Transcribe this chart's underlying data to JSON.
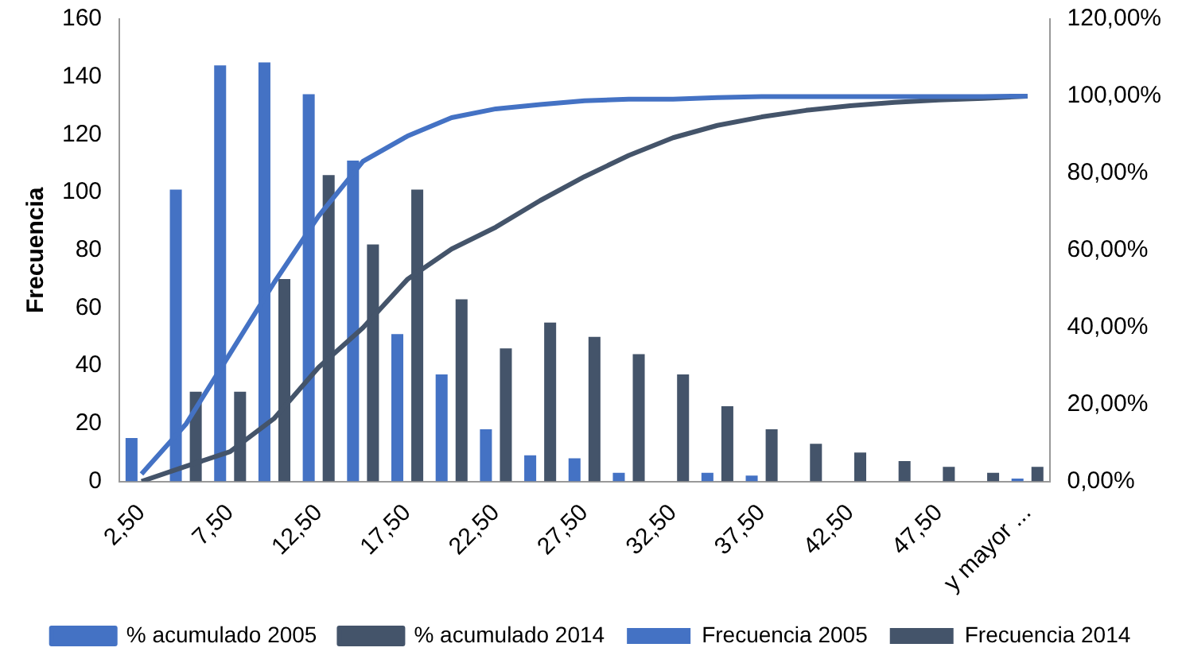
{
  "chart_data": {
    "type": "bar",
    "ylabel": "Frecuencia",
    "categories": [
      "2,50",
      null,
      "7,50",
      null,
      "12,50",
      null,
      "17,50",
      null,
      "22,50",
      null,
      "27,50",
      null,
      "32,50",
      null,
      "37,50",
      null,
      "42,50",
      null,
      "47,50",
      null,
      "y mayor ..."
    ],
    "series": [
      {
        "name": "Frecuencia 2005",
        "color": "#4472c4",
        "values": [
          15,
          101,
          144,
          145,
          134,
          111,
          51,
          37,
          18,
          9,
          8,
          3,
          0,
          3,
          2,
          0,
          0,
          0,
          0,
          0,
          1
        ]
      },
      {
        "name": "Frecuencia 2014",
        "color": "#44546a",
        "values": [
          0,
          31,
          31,
          70,
          106,
          82,
          101,
          63,
          46,
          55,
          50,
          44,
          37,
          26,
          18,
          13,
          10,
          7,
          5,
          3,
          5
        ]
      },
      {
        "name": "% acumulado 2005",
        "type": "line",
        "axis": "y2",
        "color": "#4472c4",
        "line_style": "solid",
        "values": [
          1.9,
          14.8,
          33.2,
          51.7,
          68.9,
          83.1,
          89.6,
          94.4,
          96.7,
          97.8,
          98.8,
          99.2,
          99.2,
          99.6,
          99.9,
          99.9,
          99.9,
          99.9,
          99.9,
          99.9,
          100
        ]
      },
      {
        "name": "% acumulado 2014",
        "type": "line",
        "axis": "y2",
        "color": "#44546a",
        "line_style": "solid",
        "values": [
          0,
          3.9,
          7.7,
          16.4,
          29.6,
          39.9,
          52.4,
          60.3,
          66.0,
          72.9,
          79.1,
          84.6,
          89.2,
          92.4,
          94.6,
          96.3,
          97.5,
          98.4,
          99.0,
          99.4,
          100
        ]
      }
    ],
    "ylim": [
      0,
      160
    ],
    "yticks": [
      0,
      20,
      40,
      60,
      80,
      100,
      120,
      140,
      160
    ],
    "y2lim": [
      0,
      120
    ],
    "y2ticks": [
      {
        "value": 0,
        "label": "0,00%"
      },
      {
        "value": 20,
        "label": "20,00%"
      },
      {
        "value": 40,
        "label": "40,00%"
      },
      {
        "value": 60,
        "label": "60,00%"
      },
      {
        "value": 80,
        "label": "80,00%"
      },
      {
        "value": 100,
        "label": "100,00%"
      },
      {
        "value": 120,
        "label": "120,00%"
      }
    ],
    "grid": false,
    "legend": "bottom",
    "marker": "none"
  }
}
